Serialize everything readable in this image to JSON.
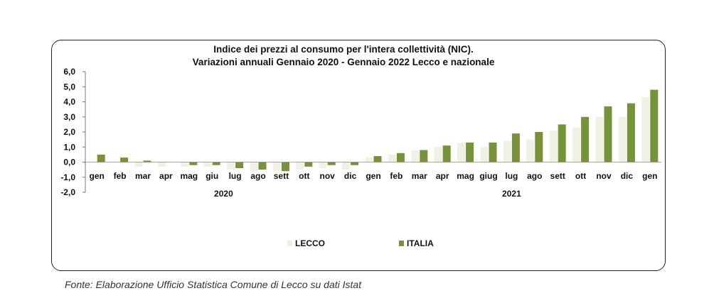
{
  "chart_data": {
    "type": "bar",
    "title": "Indice dei prezzi al consumo per l'intera collettività (NIC).",
    "subtitle": "Variazioni annuali Gennaio 2020 - Gennaio 2022 Lecco e nazionale",
    "categories": [
      "gen",
      "feb",
      "mar",
      "apr",
      "mag",
      "giu",
      "lug",
      "ago",
      "sett",
      "ott",
      "nov",
      "dic",
      "gen",
      "feb",
      "mar",
      "apr",
      "mag",
      "giug",
      "lug",
      "ago",
      "sett",
      "ott",
      "nov",
      "dic",
      "gen"
    ],
    "groups": [
      {
        "label": "2020"
      },
      {
        "label": "2021"
      }
    ],
    "series": [
      {
        "name": "LECCO",
        "color": "#EEF1E4",
        "values": [
          0.0,
          0.0,
          -0.3,
          -0.3,
          -0.3,
          -0.3,
          -0.5,
          -0.6,
          -0.6,
          -0.5,
          -0.4,
          -0.5,
          0.3,
          0.5,
          0.8,
          1.0,
          1.3,
          1.0,
          1.4,
          1.5,
          2.1,
          2.3,
          3.0,
          3.0,
          4.3
        ]
      },
      {
        "name": "ITALIA",
        "color": "#76933C",
        "values": [
          0.5,
          0.3,
          0.1,
          0.0,
          -0.2,
          -0.2,
          -0.4,
          -0.5,
          -0.6,
          -0.3,
          -0.2,
          -0.2,
          0.4,
          0.6,
          0.8,
          1.1,
          1.3,
          1.3,
          1.9,
          2.0,
          2.5,
          3.0,
          3.7,
          3.9,
          4.8
        ]
      }
    ],
    "ylim": [
      -2.0,
      6.0
    ],
    "yticks": [
      "6,0",
      "5,0",
      "4,0",
      "3,0",
      "2,0",
      "1,0",
      "0,0",
      "-1,0",
      "-2,0"
    ],
    "ytick_values": [
      6,
      5,
      4,
      3,
      2,
      1,
      0,
      -1,
      -2
    ],
    "grid": false,
    "legend": "bottom-center"
  },
  "source_note": "Fonte: Elaborazione Ufficio Statistica Comune di Lecco su dati Istat"
}
